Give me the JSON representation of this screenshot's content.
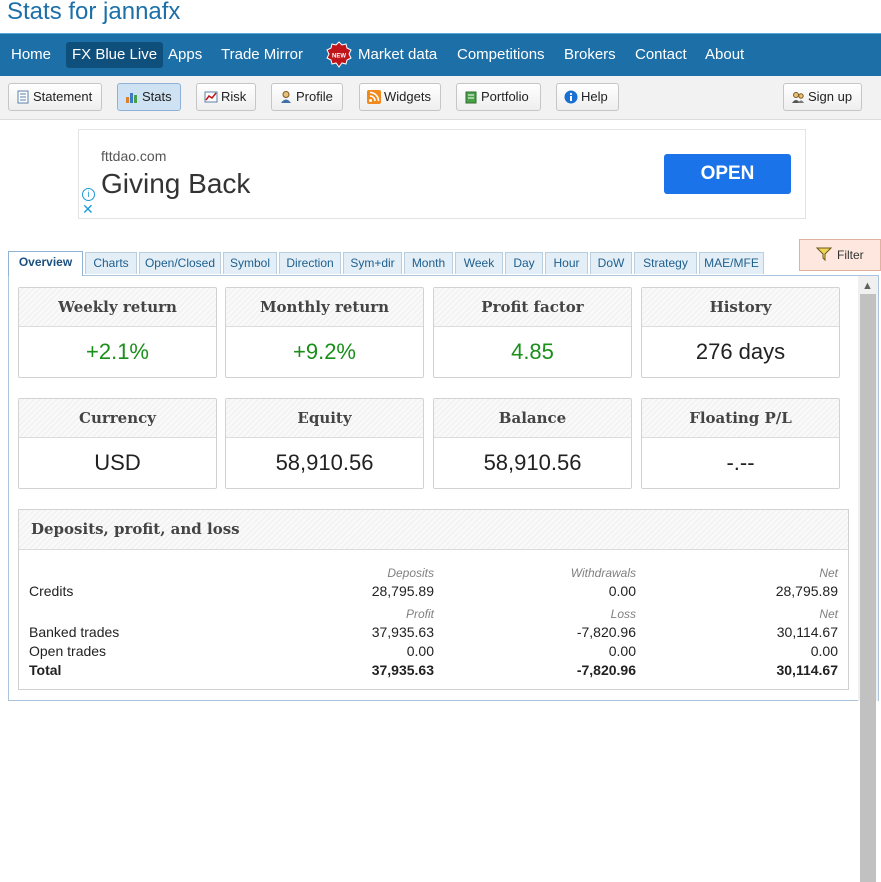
{
  "site_title": "Stats for jannafx",
  "nav": {
    "items": [
      "Home",
      "FX Blue Live",
      "Apps",
      "Trade Mirror",
      "Market data",
      "Competitions",
      "Brokers",
      "Contact",
      "About"
    ],
    "new_badge": "NEW"
  },
  "toolbar": {
    "buttons": [
      "Statement",
      "Stats",
      "Risk",
      "Profile",
      "Widgets",
      "Portfolio",
      "Help"
    ],
    "signup": "Sign up"
  },
  "ad": {
    "domain": "fttdao.com",
    "headline": "Giving Back",
    "cta": "OPEN",
    "info_glyph": "i",
    "close_glyph": "✕"
  },
  "tabs": [
    "Overview",
    "Charts",
    "Open/Closed",
    "Symbol",
    "Direction",
    "Sym+dir",
    "Month",
    "Week",
    "Day",
    "Hour",
    "DoW",
    "Strategy",
    "MAE/MFE"
  ],
  "filter_label": "Filter",
  "cards": [
    {
      "title": "Weekly return",
      "value": "+2.1%"
    },
    {
      "title": "Monthly return",
      "value": "+9.2%"
    },
    {
      "title": "Profit factor",
      "value": "4.85"
    },
    {
      "title": "History",
      "value": "276 days"
    },
    {
      "title": "Currency",
      "value": "USD"
    },
    {
      "title": "Equity",
      "value": "58,910.56"
    },
    {
      "title": "Balance",
      "value": "58,910.56"
    },
    {
      "title": "Floating P/L",
      "value": "-.--"
    }
  ],
  "deposits": {
    "title": "Deposits, profit, and loss",
    "credits_headers": [
      "Deposits",
      "Withdrawals",
      "Net"
    ],
    "credits": {
      "label": "Credits",
      "values": [
        "28,795.89",
        "0.00",
        "28,795.89"
      ]
    },
    "trade_headers": [
      "Profit",
      "Loss",
      "Net"
    ],
    "rows": [
      {
        "label": "Banked trades",
        "values": [
          "37,935.63",
          "-7,820.96",
          "30,114.67"
        ]
      },
      {
        "label": "Open trades",
        "values": [
          "0.00",
          "0.00",
          "0.00"
        ]
      },
      {
        "label": "Total",
        "values": [
          "37,935.63",
          "-7,820.96",
          "30,114.67"
        ]
      }
    ]
  },
  "colors": {
    "nav_bg": "#1d6fa8",
    "positive": "#1a8f1a",
    "cta": "#1a73e8"
  }
}
